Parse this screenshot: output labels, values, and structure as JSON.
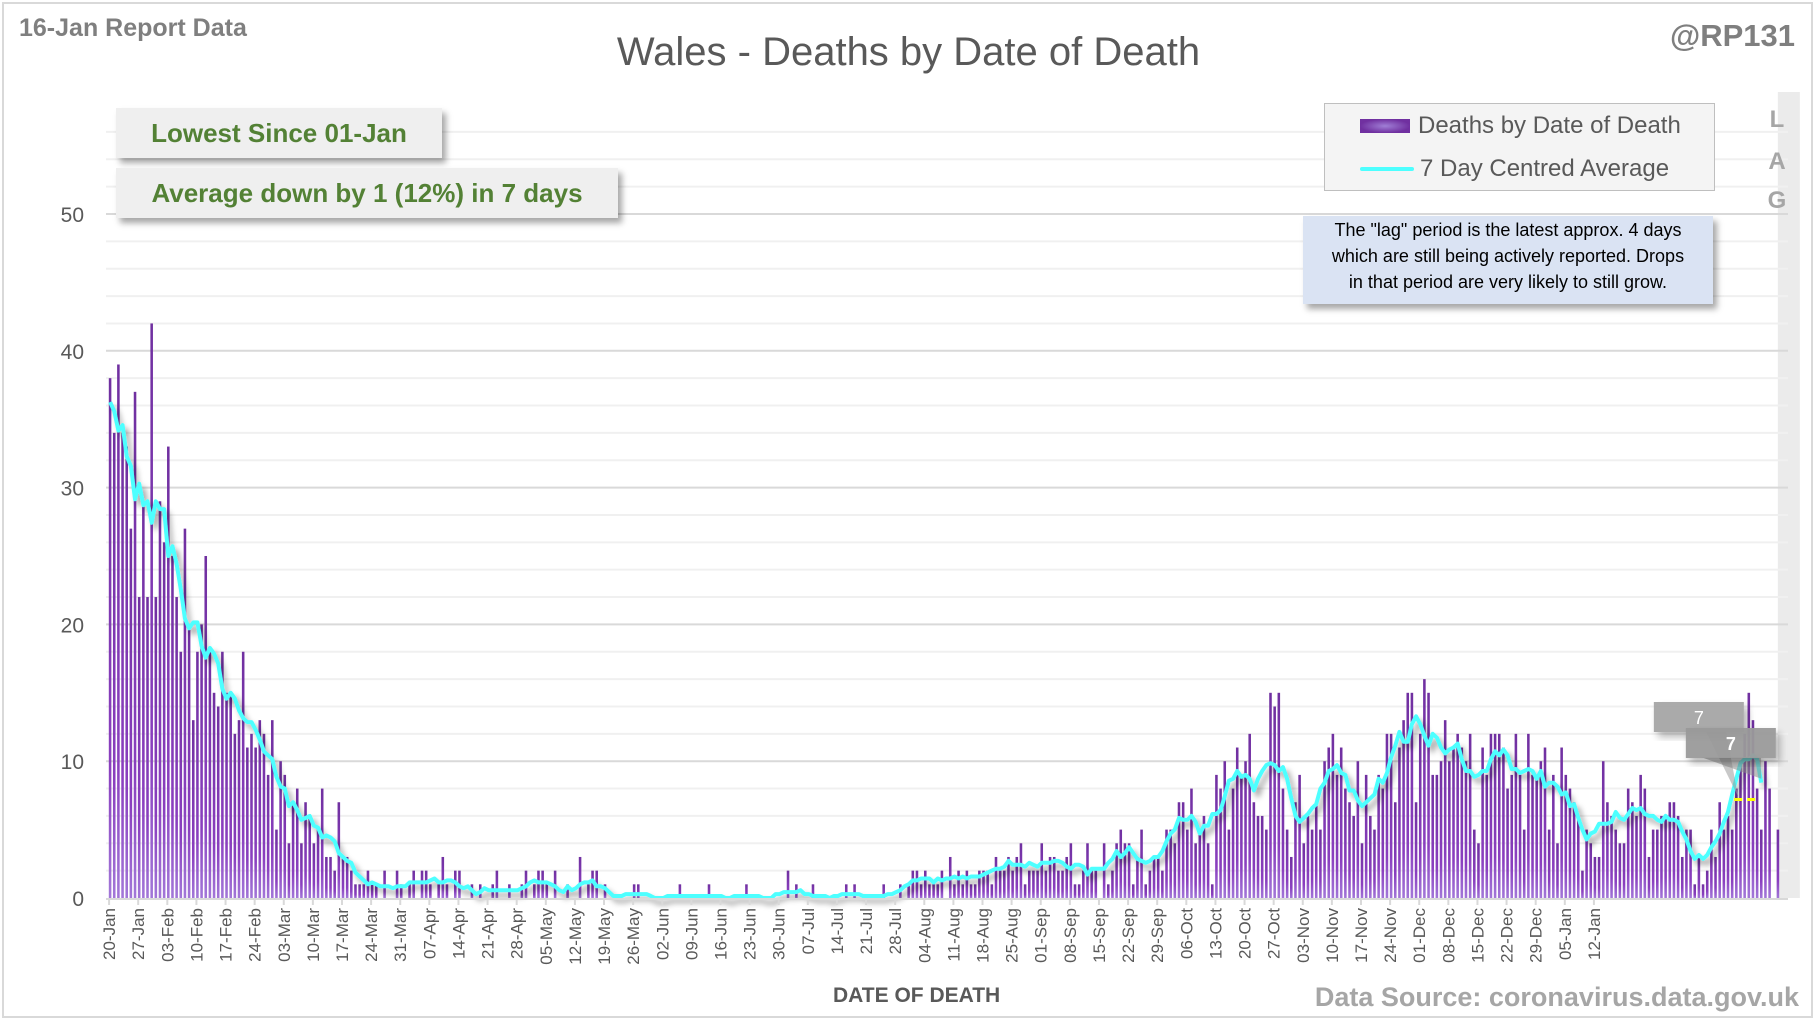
{
  "header": {
    "report_label": "16-Jan Report Data",
    "handle": "@RP131",
    "source": "Data Source: coronavirus.data.gov.uk"
  },
  "callouts": {
    "lowest": "Lowest Since 01-Jan",
    "average": "Average down by 1 (12%) in 7 days"
  },
  "lag": {
    "letters": [
      "L",
      "A",
      "G"
    ],
    "note_lines": [
      "The \"lag\" period is the latest approx. 4 days",
      "which are still being actively reported.  Drops",
      "in that period are very likely to still grow."
    ],
    "days": 4
  },
  "markers": {
    "label_1": "7",
    "label_2": "7"
  },
  "colors": {
    "bar": "#7030a0",
    "bar_light": "#9c6bd1",
    "avg_line": "#4dffff",
    "lag_bg": "#ebebeb",
    "callout_text": "#538135",
    "lag_note_bg": "#dae3f3",
    "dash": "#ffff00"
  },
  "chart_data": {
    "type": "bar",
    "title": "Wales - Deaths by Date of Death",
    "xlabel": "DATE OF DEATH",
    "ylabel": "",
    "ylim": [
      0,
      55
    ],
    "yticks": [
      0,
      10,
      20,
      30,
      40,
      50
    ],
    "grid": true,
    "legend_position": "top-right",
    "start_date": "20-Jan",
    "xtick_labels": [
      "20-Jan",
      "27-Jan",
      "03-Feb",
      "10-Feb",
      "17-Feb",
      "24-Feb",
      "03-Mar",
      "10-Mar",
      "17-Mar",
      "24-Mar",
      "31-Mar",
      "07-Apr",
      "14-Apr",
      "21-Apr",
      "28-Apr",
      "05-May",
      "12-May",
      "19-May",
      "26-May",
      "02-Jun",
      "09-Jun",
      "16-Jun",
      "23-Jun",
      "30-Jun",
      "07-Jul",
      "14-Jul",
      "21-Jul",
      "28-Jul",
      "04-Aug",
      "11-Aug",
      "18-Aug",
      "25-Aug",
      "01-Sep",
      "08-Sep",
      "15-Sep",
      "22-Sep",
      "29-Sep",
      "06-Oct",
      "13-Oct",
      "20-Oct",
      "27-Oct",
      "03-Nov",
      "10-Nov",
      "17-Nov",
      "24-Nov",
      "01-Dec",
      "08-Dec",
      "15-Dec",
      "22-Dec",
      "29-Dec",
      "05-Jan",
      "12-Jan"
    ],
    "series": [
      {
        "name": "Deaths by Date of Death",
        "type": "bar",
        "values": [
          38,
          34,
          39,
          34,
          33,
          27,
          37,
          22,
          29,
          22,
          42,
          22,
          29,
          26,
          33,
          25,
          22,
          18,
          27,
          20,
          13,
          18,
          20,
          25,
          18,
          15,
          14,
          18,
          15,
          15,
          12,
          13,
          18,
          11,
          12,
          11,
          13,
          12,
          9,
          13,
          5,
          10,
          9,
          4,
          7,
          8,
          4,
          7,
          6,
          4,
          5,
          8,
          3,
          3,
          2,
          7,
          3,
          3,
          2,
          1,
          1,
          1,
          2,
          1,
          1,
          0,
          2,
          0,
          0,
          2,
          1,
          0,
          1,
          2,
          0,
          2,
          2,
          1,
          0,
          1,
          3,
          1,
          0,
          2,
          2,
          0,
          0,
          1,
          0,
          1,
          0,
          0,
          1,
          2,
          0,
          0,
          1,
          0,
          0,
          1,
          2,
          0,
          1,
          2,
          2,
          1,
          0,
          2,
          0,
          0,
          1,
          0,
          0,
          3,
          0,
          1,
          2,
          2,
          0,
          1,
          0,
          0,
          0,
          0,
          0,
          0,
          1,
          1,
          0,
          0,
          0,
          0,
          0,
          0,
          0,
          0,
          0,
          1,
          0,
          0,
          0,
          0,
          0,
          0,
          1,
          0,
          0,
          0,
          0,
          0,
          0,
          0,
          0,
          1,
          0,
          0,
          0,
          0,
          0,
          0,
          0,
          0,
          0,
          2,
          0,
          1,
          0,
          0,
          0,
          1,
          0,
          0,
          0,
          0,
          0,
          0,
          0,
          1,
          0,
          1,
          0,
          0,
          0,
          0,
          0,
          0,
          1,
          0,
          0,
          0,
          1,
          0,
          1,
          2,
          2,
          1,
          2,
          1,
          1,
          1,
          2,
          0,
          3,
          1,
          2,
          1,
          2,
          1,
          1,
          2,
          2,
          2,
          1,
          3,
          2,
          2,
          3,
          2,
          3,
          4,
          1,
          2,
          2,
          2,
          4,
          2,
          3,
          3,
          2,
          2,
          3,
          4,
          1,
          1,
          2,
          4,
          2,
          2,
          0,
          4,
          1,
          2,
          4,
          5,
          4,
          4,
          1,
          3,
          5,
          1,
          2,
          3,
          3,
          2,
          5,
          5,
          4,
          7,
          7,
          5,
          8,
          4,
          5,
          6,
          4,
          1,
          9,
          8,
          10,
          5,
          8,
          11,
          9,
          10,
          12,
          7,
          6,
          6,
          5,
          15,
          14,
          15,
          8,
          5,
          3,
          7,
          9,
          4,
          6,
          5,
          7,
          5,
          10,
          11,
          12,
          9,
          11,
          8,
          7,
          6,
          10,
          4,
          9,
          6,
          5,
          9,
          8,
          12,
          12,
          7,
          11,
          13,
          15,
          15,
          7,
          12,
          16,
          15,
          9,
          9,
          10,
          13,
          10,
          11,
          12,
          11,
          10,
          12,
          5,
          4,
          11,
          9,
          12,
          12,
          12,
          11,
          8,
          9,
          12,
          9,
          5,
          12,
          9,
          9,
          10,
          11,
          5,
          9,
          4,
          11,
          9,
          8,
          7,
          6,
          2,
          5,
          4,
          3,
          3,
          10,
          7,
          6,
          5,
          4,
          4,
          8,
          7,
          6,
          9,
          8,
          3,
          5,
          5,
          6,
          6,
          7,
          7,
          6,
          3,
          5,
          5,
          1,
          3,
          1,
          2,
          5,
          3,
          7,
          5,
          6,
          5,
          8,
          10,
          12,
          15,
          13,
          8,
          5,
          10,
          8,
          0,
          5
        ]
      },
      {
        "name": "7 Day Centred Average",
        "type": "line",
        "window": 7
      }
    ],
    "annotations": [
      {
        "text": "7",
        "note": "7-day average marker"
      },
      {
        "text": "7",
        "note": "7-day average marker"
      }
    ]
  }
}
